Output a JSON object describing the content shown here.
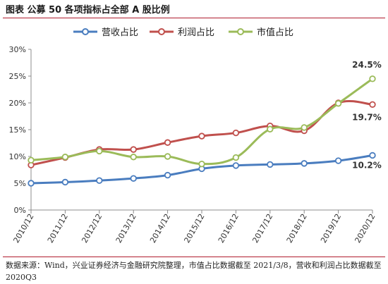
{
  "header": {
    "title": "图表  公募 50 各项指标占全部 A 股比例"
  },
  "source": {
    "text": "数据来源：Wind，兴业证券经济与金融研究院整理，市值占比数据截至 2021/3/8，营收和利润占比数据截至 2020Q3"
  },
  "chart_data": {
    "type": "line",
    "title": "",
    "xlabel": "",
    "ylabel": "",
    "categories": [
      "2010/12",
      "2011/12",
      "2012/12",
      "2013/12",
      "2014/12",
      "2015/12",
      "2016/12",
      "2017/12",
      "2018/12",
      "2019/12",
      "2020/12"
    ],
    "ylim": [
      0,
      30
    ],
    "yticks": [
      "0%",
      "5%",
      "10%",
      "15%",
      "20%",
      "25%",
      "30%"
    ],
    "grid": false,
    "legend_position": "top",
    "series": [
      {
        "name": "营收占比",
        "color": "#4a7dbf",
        "values": [
          5.0,
          5.2,
          5.5,
          5.9,
          6.5,
          7.7,
          8.3,
          8.5,
          8.7,
          9.2,
          10.2
        ],
        "end_label": "10.2%"
      },
      {
        "name": "利润占比",
        "color": "#c0504d",
        "values": [
          8.4,
          9.8,
          11.3,
          11.3,
          12.6,
          13.8,
          14.4,
          15.7,
          14.8,
          20.0,
          19.7
        ],
        "end_label": "19.7%"
      },
      {
        "name": "市值占比",
        "color": "#9bbb59",
        "values": [
          9.3,
          9.9,
          11.0,
          9.9,
          10.0,
          8.6,
          9.8,
          15.1,
          15.4,
          19.9,
          24.5
        ],
        "end_label": "24.5%"
      }
    ]
  }
}
